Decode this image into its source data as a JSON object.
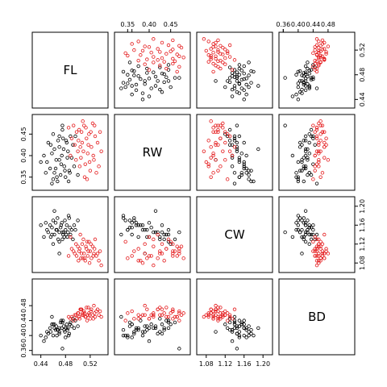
{
  "chart_data": {
    "type": "scatter",
    "kind": "scatterplot-matrix",
    "variables": [
      "FL",
      "RW",
      "CW",
      "BD"
    ],
    "panel_ranges": {
      "FL": [
        0.43,
        0.545
      ],
      "RW": [
        0.325,
        0.49
      ],
      "CW": [
        1.065,
        1.215
      ],
      "BD": [
        0.355,
        0.545
      ]
    },
    "ticks": {
      "FL": [
        0.44,
        0.48,
        0.52
      ],
      "RW": [
        0.35,
        0.4,
        0.45
      ],
      "CW": [
        1.08,
        1.12,
        1.16,
        1.2
      ],
      "BD": [
        0.36,
        0.4,
        0.44,
        0.48
      ]
    },
    "tick_labels": {
      "FL": [
        "0.44",
        "0.48",
        "0.52"
      ],
      "RW": [
        "0.35",
        "0.40",
        "0.45"
      ],
      "CW": [
        "1.08",
        "1.12",
        "1.16",
        "1.20"
      ],
      "BD": [
        "0.36",
        "0.40",
        "0.44",
        "0.48"
      ]
    },
    "extra_ticks": {
      "top": {
        "RW": [
          0.36
        ],
        "BD": [
          0.36
        ]
      },
      "right": {
        "RW": [
          0.48
        ],
        "BD": [
          0.52
        ]
      }
    },
    "axis_sides": {
      "top": [
        "RW",
        "BD"
      ],
      "bottom": [
        "FL",
        "CW"
      ],
      "left": [
        "RW",
        "BD"
      ],
      "right": [
        "FL",
        "CW"
      ]
    },
    "grid": false,
    "legend": "none",
    "point_shape": "open-circle",
    "series": [
      {
        "color": "#000000",
        "points": [
          [
            0.45,
            0.385,
            1.15,
            0.41
          ],
          [
            0.455,
            0.37,
            1.16,
            0.42
          ],
          [
            0.46,
            0.345,
            1.17,
            0.4
          ],
          [
            0.462,
            0.36,
            1.14,
            0.43
          ],
          [
            0.465,
            0.39,
            1.15,
            0.425
          ],
          [
            0.468,
            0.435,
            1.13,
            0.415
          ],
          [
            0.47,
            0.42,
            1.145,
            0.405
          ],
          [
            0.472,
            0.355,
            1.155,
            0.435
          ],
          [
            0.474,
            0.4,
            1.165,
            0.42
          ],
          [
            0.476,
            0.44,
            1.14,
            0.44
          ],
          [
            0.478,
            0.375,
            1.135,
            0.415
          ],
          [
            0.48,
            0.35,
            1.15,
            0.395
          ],
          [
            0.482,
            0.43,
            1.16,
            0.43
          ],
          [
            0.484,
            0.41,
            1.145,
            0.42
          ],
          [
            0.486,
            0.365,
            1.175,
            0.405
          ],
          [
            0.488,
            0.445,
            1.14,
            0.435
          ],
          [
            0.49,
            0.395,
            1.15,
            0.425
          ],
          [
            0.456,
            0.425,
            1.135,
            0.41
          ],
          [
            0.458,
            0.405,
            1.155,
            0.43
          ],
          [
            0.464,
            0.37,
            1.165,
            0.415
          ],
          [
            0.466,
            0.35,
            1.15,
            0.4
          ],
          [
            0.47,
            0.445,
            1.125,
            0.42
          ],
          [
            0.473,
            0.38,
            1.16,
            0.44
          ],
          [
            0.477,
            0.415,
            1.145,
            0.425
          ],
          [
            0.479,
            0.365,
            1.17,
            0.41
          ],
          [
            0.481,
            0.435,
            1.14,
            0.42
          ],
          [
            0.483,
            0.395,
            1.135,
            0.415
          ],
          [
            0.487,
            0.36,
            1.155,
            0.43
          ],
          [
            0.492,
            0.425,
            1.13,
            0.445
          ],
          [
            0.494,
            0.375,
            1.16,
            0.42
          ],
          [
            0.452,
            0.43,
            1.145,
            0.405
          ],
          [
            0.448,
            0.36,
            1.165,
            0.395
          ],
          [
            0.46,
            0.45,
            1.12,
            0.43
          ],
          [
            0.467,
            0.34,
            1.175,
            0.415
          ],
          [
            0.475,
            0.46,
            1.13,
            0.435
          ],
          [
            0.485,
            0.34,
            1.18,
            0.4
          ],
          [
            0.445,
            0.4,
            1.135,
            0.385
          ],
          [
            0.496,
            0.445,
            1.15,
            0.44
          ],
          [
            0.462,
            0.415,
            1.19,
            0.42
          ],
          [
            0.47,
            0.39,
            1.1,
            0.41
          ],
          [
            0.44,
            0.385,
            1.16,
            0.4
          ],
          [
            0.5,
            0.355,
            1.17,
            0.425
          ],
          [
            0.475,
            0.47,
            1.145,
            0.365
          ],
          [
            0.458,
            0.335,
            1.14,
            0.45
          ]
        ]
      },
      {
        "color": "#e41a1c",
        "points": [
          [
            0.49,
            0.44,
            1.11,
            0.45
          ],
          [
            0.495,
            0.425,
            1.1,
            0.455
          ],
          [
            0.498,
            0.455,
            1.095,
            0.445
          ],
          [
            0.5,
            0.41,
            1.115,
            0.46
          ],
          [
            0.502,
            0.46,
            1.105,
            0.45
          ],
          [
            0.505,
            0.395,
            1.09,
            0.47
          ],
          [
            0.507,
            0.43,
            1.12,
            0.455
          ],
          [
            0.51,
            0.47,
            1.1,
            0.465
          ],
          [
            0.512,
            0.38,
            1.085,
            0.45
          ],
          [
            0.514,
            0.44,
            1.11,
            0.475
          ],
          [
            0.516,
            0.405,
            1.095,
            0.455
          ],
          [
            0.518,
            0.45,
            1.125,
            0.46
          ],
          [
            0.52,
            0.365,
            1.105,
            0.445
          ],
          [
            0.522,
            0.42,
            1.09,
            0.47
          ],
          [
            0.524,
            0.475,
            1.115,
            0.455
          ],
          [
            0.526,
            0.39,
            1.1,
            0.48
          ],
          [
            0.528,
            0.445,
            1.13,
            0.45
          ],
          [
            0.53,
            0.36,
            1.095,
            0.465
          ],
          [
            0.493,
            0.47,
            1.105,
            0.44
          ],
          [
            0.497,
            0.39,
            1.12,
            0.455
          ],
          [
            0.501,
            0.435,
            1.085,
            0.46
          ],
          [
            0.503,
            0.375,
            1.11,
            0.445
          ],
          [
            0.506,
            0.455,
            1.1,
            0.47
          ],
          [
            0.509,
            0.41,
            1.13,
            0.455
          ],
          [
            0.511,
            0.35,
            1.09,
            0.46
          ],
          [
            0.513,
            0.465,
            1.115,
            0.45
          ],
          [
            0.517,
            0.425,
            1.105,
            0.475
          ],
          [
            0.519,
            0.385,
            1.08,
            0.455
          ],
          [
            0.521,
            0.455,
            1.12,
            0.465
          ],
          [
            0.525,
            0.4,
            1.095,
            0.445
          ],
          [
            0.527,
            0.47,
            1.11,
            0.46
          ],
          [
            0.532,
            0.43,
            1.1,
            0.47
          ],
          [
            0.488,
            0.4,
            1.135,
            0.445
          ],
          [
            0.534,
            0.375,
            1.085,
            0.455
          ],
          [
            0.536,
            0.455,
            1.105,
            0.465
          ],
          [
            0.485,
            0.465,
            1.095,
            0.45
          ],
          [
            0.515,
            0.345,
            1.125,
            0.44
          ],
          [
            0.508,
            0.48,
            1.09,
            0.46
          ],
          [
            0.538,
            0.41,
            1.075,
            0.45
          ],
          [
            0.504,
            0.42,
            1.14,
            0.47
          ]
        ]
      }
    ]
  }
}
